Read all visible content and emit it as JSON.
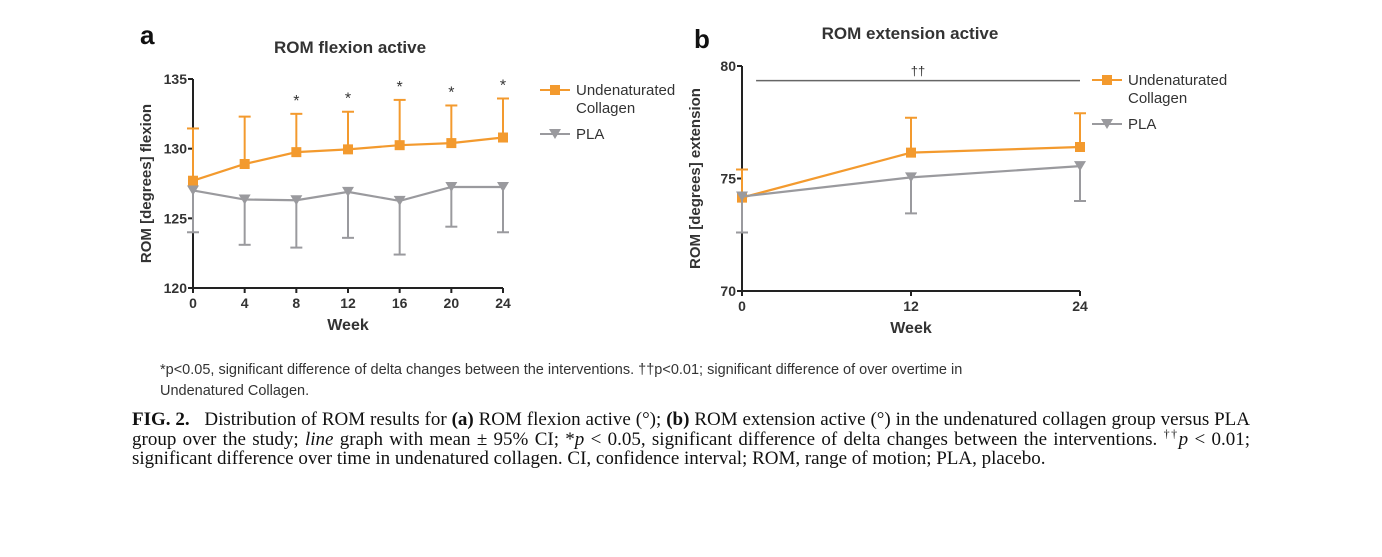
{
  "chart_data": [
    {
      "type": "line",
      "panel_label": "a",
      "title": "ROM flexion active",
      "xlabel": "Week",
      "ylabel": "ROM [degrees] flexion",
      "x": [
        0,
        4,
        8,
        12,
        16,
        20,
        24
      ],
      "xticks": [
        "0",
        "4",
        "8",
        "12",
        "16",
        "20",
        "24"
      ],
      "yticks": [
        "120",
        "125",
        "130",
        "135"
      ],
      "ylim": [
        120,
        135
      ],
      "xlim": [
        0,
        24
      ],
      "grid": false,
      "legend": "top-right outside",
      "series": [
        {
          "name": "Undenaturated Collagen",
          "color": "#f39a2e",
          "marker": "square",
          "values": [
            127.7,
            128.9,
            129.75,
            129.95,
            130.25,
            130.4,
            130.8
          ],
          "error_upper": [
            131.45,
            132.3,
            132.5,
            132.65,
            133.5,
            133.1,
            133.6
          ]
        },
        {
          "name": "PLA",
          "color": "#9a9a9e",
          "marker": "triangle-down",
          "values": [
            127.0,
            126.35,
            126.3,
            126.9,
            126.25,
            127.25,
            127.25
          ],
          "error_lower": [
            124.0,
            123.1,
            122.9,
            123.6,
            122.4,
            124.4,
            124.0
          ]
        }
      ],
      "annotations": [
        {
          "x": 8,
          "text": "*"
        },
        {
          "x": 12,
          "text": "*"
        },
        {
          "x": 16,
          "text": "*"
        },
        {
          "x": 20,
          "text": "*"
        },
        {
          "x": 24,
          "text": "*"
        }
      ]
    },
    {
      "type": "line",
      "panel_label": "b",
      "title": "ROM extension active",
      "xlabel": "Week",
      "ylabel": "ROM [degrees] extension",
      "x": [
        0,
        12,
        24
      ],
      "xticks": [
        "0",
        "12",
        "24"
      ],
      "yticks": [
        "70",
        "75",
        "80"
      ],
      "ylim": [
        70,
        80
      ],
      "xlim": [
        0,
        24
      ],
      "grid": false,
      "legend": "top-right outside",
      "series": [
        {
          "name": "Undenaturated Collagen",
          "color": "#f39a2e",
          "marker": "square",
          "values": [
            74.15,
            76.15,
            76.4
          ],
          "error_upper": [
            75.4,
            77.7,
            77.9
          ]
        },
        {
          "name": "PLA",
          "color": "#9a9a9e",
          "marker": "triangle-down",
          "values": [
            74.2,
            75.05,
            75.55
          ],
          "error_lower": [
            72.6,
            73.45,
            74.0
          ]
        }
      ],
      "significance_bar": {
        "x_from": 1,
        "x_to": 24,
        "y": 79.35,
        "text": "††"
      }
    }
  ],
  "legend_labels": {
    "collagen_line1": "Undenaturated",
    "collagen_line2": "Collagen",
    "pla": "PLA"
  },
  "footnote": {
    "line1": "*p<0.05, significant difference of delta changes between the interventions. ††p<0.01; significant difference of over overtime in",
    "line2": "Undenatured Collagen."
  },
  "caption": {
    "fig": "FIG. 2.",
    "t1": " Distribution of ROM results for ",
    "a": "(a)",
    "t2": " ROM flexion active (°); ",
    "b": "(b)",
    "t3": " ROM extension active (°) in the undenatured collagen group versus PLA group over the study; ",
    "line": "line",
    "t4": " graph with mean ± 95% CI; *",
    "p1": "p",
    "t5": " < 0.05, significant difference of delta changes between the interventions. ",
    "dagger": "††",
    "p2": "p",
    "t6": " < 0.01; significant difference over time in undenatured collagen. CI, confidence interval; ROM, range of motion; PLA, placebo."
  }
}
